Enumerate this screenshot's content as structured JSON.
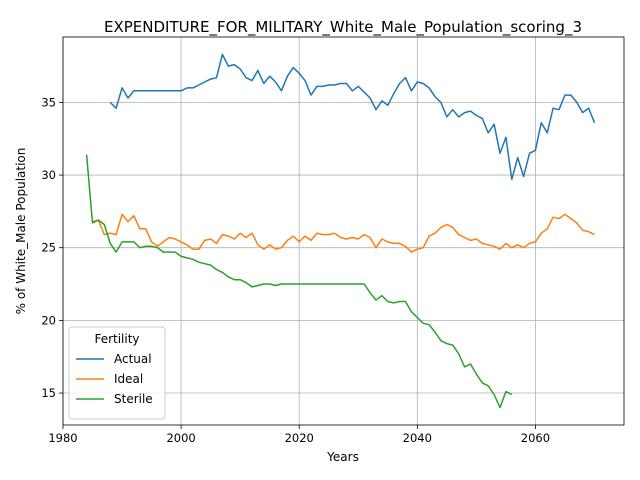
{
  "chart_data": {
    "type": "line",
    "title": "EXPENDITURE_FOR_MILITARY_White_Male_Population_scoring_3",
    "xlabel": "Years",
    "ylabel": "% of White_Male Population",
    "xlim": [
      1980,
      2075
    ],
    "ylim": [
      12.8,
      39.5
    ],
    "xticks": [
      1980,
      2000,
      2020,
      2040,
      2060
    ],
    "yticks": [
      15,
      20,
      25,
      30,
      35
    ],
    "grid": true,
    "legend": {
      "title": "Fertility",
      "placement": "lower-left"
    },
    "series": [
      {
        "name": "Actual",
        "color": "#1f77b4",
        "x": [
          1988,
          1989,
          1990,
          1991,
          1992,
          1993,
          1994,
          1995,
          1996,
          1997,
          1998,
          1999,
          2000,
          2001,
          2002,
          2003,
          2004,
          2005,
          2006,
          2007,
          2008,
          2009,
          2010,
          2011,
          2012,
          2013,
          2014,
          2015,
          2016,
          2017,
          2018,
          2019,
          2020,
          2021,
          2022,
          2023,
          2024,
          2025,
          2026,
          2027,
          2028,
          2029,
          2030,
          2031,
          2032,
          2033,
          2034,
          2035,
          2036,
          2037,
          2038,
          2039,
          2040,
          2041,
          2042,
          2043,
          2044,
          2045,
          2046,
          2047,
          2048,
          2049,
          2050,
          2051,
          2052,
          2053,
          2054,
          2055,
          2056,
          2057,
          2058,
          2059,
          2060,
          2061,
          2062,
          2063,
          2064,
          2065,
          2066,
          2067,
          2068,
          2069,
          2070
        ],
        "values": [
          35.0,
          34.6,
          36.0,
          35.3,
          35.8,
          35.8,
          35.8,
          35.8,
          35.8,
          35.8,
          35.8,
          35.8,
          35.8,
          36.0,
          36.0,
          36.2,
          36.4,
          36.6,
          36.7,
          38.3,
          37.5,
          37.6,
          37.3,
          36.7,
          36.5,
          37.2,
          36.3,
          36.8,
          36.4,
          35.8,
          36.8,
          37.4,
          37.0,
          36.5,
          35.5,
          36.1,
          36.1,
          36.2,
          36.2,
          36.3,
          36.3,
          35.8,
          36.1,
          35.7,
          35.3,
          34.5,
          35.1,
          34.8,
          35.6,
          36.3,
          36.7,
          35.8,
          36.4,
          36.3,
          36.0,
          35.4,
          35.0,
          34.0,
          34.5,
          34.0,
          34.3,
          34.4,
          34.1,
          33.9,
          32.9,
          33.5,
          31.5,
          32.6,
          29.7,
          31.2,
          29.9,
          31.5,
          31.7,
          33.6,
          32.9,
          34.6,
          34.5,
          35.5,
          35.5,
          35.0,
          34.3,
          34.6,
          33.6
        ]
      },
      {
        "name": "Ideal",
        "color": "#ff7f0e",
        "x": [
          1985,
          1986,
          1987,
          1988,
          1989,
          1990,
          1991,
          1992,
          1993,
          1994,
          1995,
          1996,
          1997,
          1998,
          1999,
          2000,
          2001,
          2002,
          2003,
          2004,
          2005,
          2006,
          2007,
          2008,
          2009,
          2010,
          2011,
          2012,
          2013,
          2014,
          2015,
          2016,
          2017,
          2018,
          2019,
          2020,
          2021,
          2022,
          2023,
          2024,
          2025,
          2026,
          2027,
          2028,
          2029,
          2030,
          2031,
          2032,
          2033,
          2034,
          2035,
          2036,
          2037,
          2038,
          2039,
          2040,
          2041,
          2042,
          2043,
          2044,
          2045,
          2046,
          2047,
          2048,
          2049,
          2050,
          2051,
          2052,
          2053,
          2054,
          2055,
          2056,
          2057,
          2058,
          2059,
          2060,
          2061,
          2062,
          2063,
          2064,
          2065,
          2066,
          2067,
          2068,
          2069,
          2070
        ],
        "values": [
          26.8,
          26.9,
          25.9,
          26.0,
          25.9,
          27.3,
          26.8,
          27.2,
          26.3,
          26.3,
          25.4,
          25.1,
          25.4,
          25.7,
          25.6,
          25.4,
          25.2,
          24.9,
          24.9,
          25.5,
          25.6,
          25.3,
          25.9,
          25.8,
          25.6,
          26.0,
          25.7,
          26.0,
          25.2,
          24.9,
          25.2,
          24.9,
          25.0,
          25.5,
          25.8,
          25.4,
          25.8,
          25.5,
          26.0,
          25.9,
          25.9,
          26.0,
          25.7,
          25.6,
          25.7,
          25.6,
          25.9,
          25.7,
          25.0,
          25.6,
          25.4,
          25.3,
          25.3,
          25.1,
          24.7,
          24.9,
          25.0,
          25.8,
          26.0,
          26.4,
          26.6,
          26.4,
          25.9,
          25.7,
          25.5,
          25.6,
          25.3,
          25.2,
          25.1,
          24.9,
          25.3,
          25.0,
          25.2,
          25.0,
          25.3,
          25.4,
          26.0,
          26.3,
          27.1,
          27.0,
          27.3,
          27.0,
          26.7,
          26.2,
          26.1,
          25.9
        ]
      },
      {
        "name": "Sterile",
        "color": "#2ca02c",
        "x": [
          1984,
          1985,
          1986,
          1987,
          1988,
          1989,
          1990,
          1991,
          1992,
          1993,
          1994,
          1995,
          1996,
          1997,
          1998,
          1999,
          2000,
          2001,
          2002,
          2003,
          2004,
          2005,
          2006,
          2007,
          2008,
          2009,
          2010,
          2011,
          2012,
          2013,
          2014,
          2015,
          2016,
          2017,
          2018,
          2019,
          2020,
          2021,
          2022,
          2023,
          2024,
          2025,
          2026,
          2027,
          2028,
          2029,
          2030,
          2031,
          2032,
          2033,
          2034,
          2035,
          2036,
          2037,
          2038,
          2039,
          2040,
          2041,
          2042,
          2043,
          2044,
          2045,
          2046,
          2047,
          2048,
          2049,
          2050,
          2051,
          2052,
          2053,
          2054,
          2055,
          2056
        ],
        "values": [
          31.4,
          26.7,
          26.9,
          26.6,
          25.3,
          24.7,
          25.4,
          25.4,
          25.4,
          25.0,
          25.1,
          25.1,
          25.0,
          24.7,
          24.7,
          24.7,
          24.4,
          24.3,
          24.2,
          24.0,
          23.9,
          23.8,
          23.5,
          23.3,
          23.0,
          22.8,
          22.8,
          22.6,
          22.3,
          22.4,
          22.5,
          22.5,
          22.4,
          22.5,
          22.5,
          22.5,
          22.5,
          22.5,
          22.5,
          22.5,
          22.5,
          22.5,
          22.5,
          22.5,
          22.5,
          22.5,
          22.5,
          22.5,
          21.9,
          21.4,
          21.7,
          21.3,
          21.2,
          21.3,
          21.3,
          20.6,
          20.2,
          19.8,
          19.7,
          19.2,
          18.6,
          18.4,
          18.3,
          17.7,
          16.8,
          17.0,
          16.3,
          15.7,
          15.5,
          14.9,
          14.0,
          15.1,
          14.9
        ]
      }
    ]
  }
}
